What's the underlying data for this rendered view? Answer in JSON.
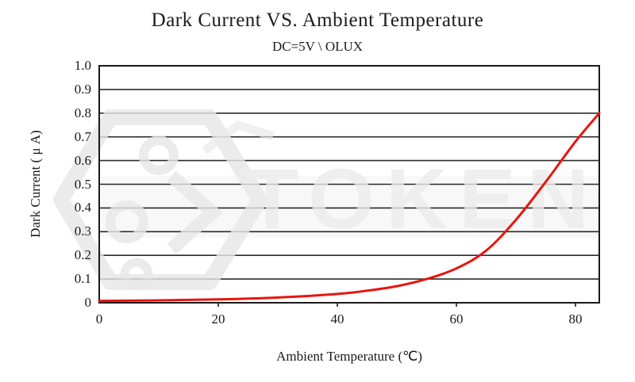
{
  "chart": {
    "title": "Dark Current VS. Ambient Temperature",
    "subtitle": "DC=5V \\ OLUX",
    "xlabel": "Ambient Temperature (℃)",
    "ylabel": "Dark Current ( μ A)"
  },
  "watermark": {
    "text": "TOKEN",
    "icon": "token-hexagon-logo",
    "color": "#ececec"
  },
  "colors": {
    "curve": "#e8150d",
    "gridline": "#2b2b2b",
    "border": "#1a1a1a",
    "text": "#1a1a1a",
    "background": "#ffffff"
  },
  "chart_data": {
    "type": "line",
    "title": "Dark Current VS. Ambient Temperature",
    "subtitle": "DC=5V \\ OLUX",
    "xlabel": "Ambient Temperature (°C)",
    "ylabel": "Dark Current (μA)",
    "xlim": [
      0,
      84
    ],
    "ylim": [
      0,
      1
    ],
    "x_tick_values": [
      0,
      20,
      40,
      60,
      80
    ],
    "x_tick_labels": [
      "0",
      "20",
      "40",
      "60",
      "80"
    ],
    "y_tick_values": [
      0,
      0.1,
      0.2,
      0.3,
      0.4,
      0.5,
      0.6,
      0.7,
      0.8,
      0.9,
      1.0
    ],
    "y_tick_labels": [
      "0",
      "0.1",
      "0.2",
      "0.3",
      "0.4",
      "0.5",
      "0.6",
      "0.7",
      "0.8",
      "0.9",
      "1.0"
    ],
    "grid": "horizontal-only",
    "legend": "none",
    "series": [
      {
        "name": "Dark Current",
        "color": "#e8150d",
        "points": [
          [
            0,
            0.008
          ],
          [
            10,
            0.01
          ],
          [
            20,
            0.014
          ],
          [
            30,
            0.022
          ],
          [
            40,
            0.037
          ],
          [
            45,
            0.051
          ],
          [
            50,
            0.07
          ],
          [
            55,
            0.1
          ],
          [
            60,
            0.145
          ],
          [
            65,
            0.22
          ],
          [
            70,
            0.35
          ],
          [
            75,
            0.51
          ],
          [
            80,
            0.68
          ],
          [
            84,
            0.8
          ]
        ]
      }
    ]
  }
}
